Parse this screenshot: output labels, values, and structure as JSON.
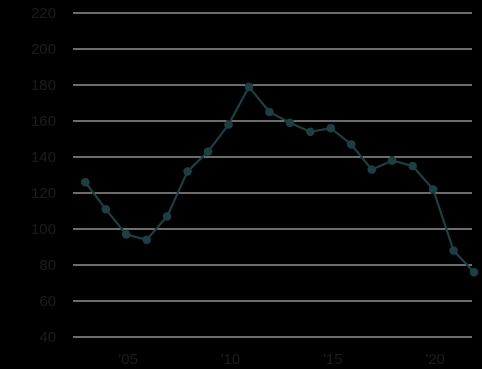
{
  "chart_data": {
    "type": "line",
    "title": "",
    "xlabel": "",
    "ylabel": "",
    "ylim": [
      40,
      220
    ],
    "xlim": [
      2002.4,
      2021.9
    ],
    "y_ticks": [
      40,
      60,
      80,
      100,
      120,
      140,
      160,
      180,
      200,
      220
    ],
    "y_tick_labels": [
      "40",
      "60",
      "80",
      "100",
      "120",
      "140",
      "160",
      "180",
      "200",
      "220"
    ],
    "x_ticks": [
      2005,
      2010,
      2015,
      2020
    ],
    "x_tick_labels": [
      "'05",
      "'10",
      "'15",
      "'20"
    ],
    "grid": "horizontal",
    "series": [
      {
        "x": [
          2003,
          2004,
          2005,
          2006,
          2007,
          2008,
          2009,
          2010,
          2011,
          2012,
          2013,
          2014,
          2015,
          2016,
          2017,
          2018,
          2019,
          2020,
          2021,
          2022
        ],
        "values": [
          126,
          111,
          97,
          94,
          107,
          132,
          143,
          158,
          179,
          165,
          159,
          154,
          156,
          147,
          133,
          138,
          135,
          122,
          88,
          76
        ]
      }
    ],
    "colors": {
      "background": "#000000",
      "line": "#1d3f42",
      "grid": "#d8d8d8",
      "text": "#1c1c1c"
    }
  }
}
